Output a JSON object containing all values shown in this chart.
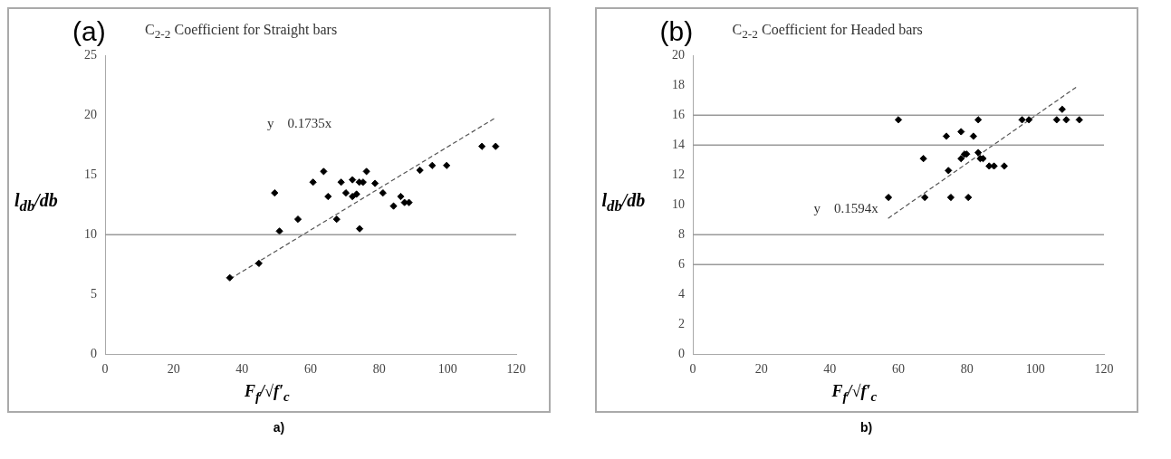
{
  "chart_data": [
    {
      "type": "scatter",
      "title": "C$_{2-2}$ Coefficient for Straight bars",
      "xlabel": "F$_{f}$/√f′$_{c}$",
      "ylabel": "l$_{db}$/db",
      "xlim": [
        0,
        120
      ],
      "xticks": [
        0,
        20,
        40,
        60,
        80,
        100,
        120
      ],
      "ylim": [
        0,
        25
      ],
      "yticks": [
        0,
        5,
        10,
        15,
        20,
        25
      ],
      "grid": false,
      "ref_lines": [
        {
          "axis": "y",
          "value": 10,
          "color": "#999999"
        }
      ],
      "series": [
        {
          "type": "scatter",
          "color": "#000000",
          "marker": "diamond",
          "x": [
            36.4,
            44.9,
            49.5,
            50.9,
            56.3,
            60.7,
            63.8,
            65.1,
            67.6,
            68.9,
            70.3,
            72.2,
            72.2,
            73.4,
            74.3,
            74.2,
            75.3,
            76.3,
            78.8,
            81.1,
            84.2,
            86.3,
            87.4,
            88.7,
            91.9,
            95.5,
            99.7,
            110.0,
            114.0
          ],
          "values": [
            6.4,
            7.6,
            13.5,
            10.3,
            11.3,
            14.4,
            15.3,
            13.2,
            11.3,
            14.4,
            13.5,
            14.6,
            13.2,
            13.4,
            10.5,
            14.4,
            14.4,
            15.3,
            14.3,
            13.5,
            12.4,
            13.2,
            12.7,
            12.7,
            15.4,
            15.8,
            15.8,
            17.4,
            17.4
          ]
        },
        {
          "type": "line",
          "color": "#555555",
          "line_style": "dashed",
          "x": [
            36.5,
            114
          ],
          "values": [
            6.3,
            19.8
          ]
        }
      ],
      "annotations": [
        "(a)",
        "a)",
        "y    0.1735x"
      ]
    },
    {
      "type": "scatter",
      "title": "C$_{2-2}$ Coefficient for Headed bars",
      "xlabel": "F$_{f}$/√f′$_{c}$",
      "ylabel": "l$_{db}$/db",
      "xlim": [
        0,
        120
      ],
      "xticks": [
        0,
        20,
        40,
        60,
        80,
        100,
        120
      ],
      "ylim": [
        0,
        20
      ],
      "yticks": [
        0,
        2,
        4,
        6,
        8,
        10,
        12,
        14,
        16,
        18,
        20
      ],
      "grid": false,
      "ref_lines": [
        {
          "axis": "y",
          "value": 6,
          "color": "#999999"
        },
        {
          "axis": "y",
          "value": 8,
          "color": "#999999"
        },
        {
          "axis": "y",
          "value": 14,
          "color": "#999999"
        },
        {
          "axis": "y",
          "value": 16,
          "color": "#999999"
        }
      ],
      "series": [
        {
          "type": "scatter",
          "color": "#000000",
          "marker": "diamond",
          "x": [
            57.1,
            60.0,
            67.3,
            67.7,
            74.0,
            74.6,
            75.3,
            78.3,
            78.3,
            79.3,
            79.9,
            80.4,
            81.9,
            83.3,
            83.3,
            83.9,
            84.7,
            86.5,
            87.9,
            90.9,
            96.1,
            98.1,
            106.2,
            107.8,
            109.0,
            112.8
          ],
          "values": [
            10.5,
            15.7,
            13.1,
            10.5,
            14.6,
            12.3,
            10.5,
            14.9,
            13.1,
            13.4,
            13.4,
            10.5,
            14.6,
            15.7,
            13.5,
            13.1,
            13.1,
            12.6,
            12.6,
            12.6,
            15.7,
            15.7,
            15.7,
            16.4,
            15.7,
            15.7
          ]
        },
        {
          "type": "line",
          "color": "#555555",
          "line_style": "dashed",
          "x": [
            57,
            112
          ],
          "values": [
            9.1,
            17.9
          ]
        }
      ],
      "annotations": [
        "(b)",
        "b)",
        "y    0.1594x"
      ]
    }
  ]
}
